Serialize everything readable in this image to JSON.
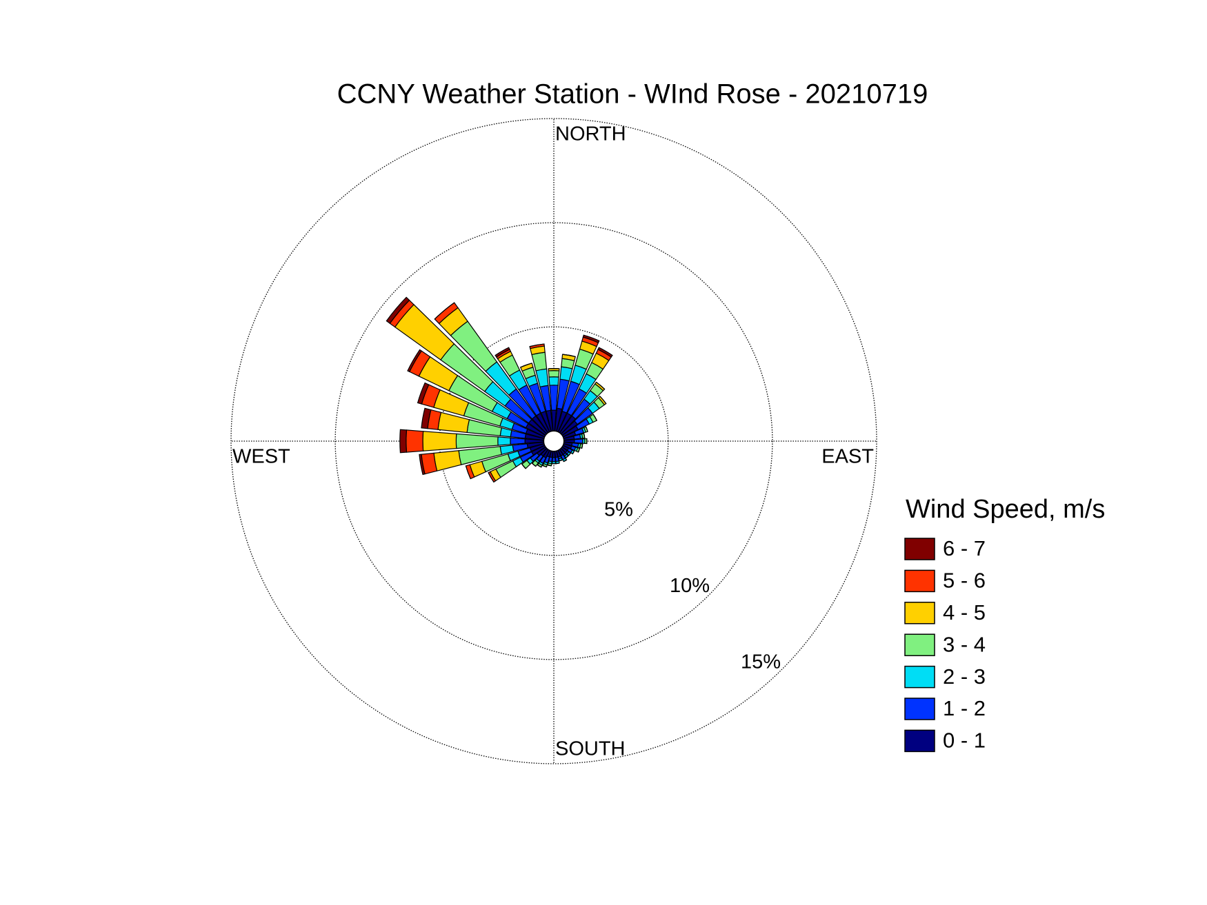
{
  "chart_data": {
    "type": "windrose",
    "title": "CCNY Weather Station - WInd Rose - 20210719",
    "x": [
      0,
      10,
      20,
      30,
      40,
      50,
      60,
      70,
      80,
      90,
      100,
      110,
      120,
      130,
      140,
      150,
      160,
      170,
      180,
      190,
      200,
      210,
      220,
      230,
      240,
      250,
      260,
      270,
      280,
      290,
      300,
      310,
      320,
      330,
      340,
      350
    ],
    "rlim": [
      0,
      15
    ],
    "rticks": [
      {
        "value": 5,
        "label": "5%"
      },
      {
        "value": 10,
        "label": "10%"
      },
      {
        "value": 15,
        "label": "15%"
      }
    ],
    "angle_ticks": [
      {
        "value": 0,
        "label": "NORTH"
      },
      {
        "value": 90,
        "label": "EAST"
      },
      {
        "value": 180,
        "label": "SOUTH"
      },
      {
        "value": 270,
        "label": "WEST"
      }
    ],
    "legend_title": "Wind Speed, m/s",
    "legend": "right",
    "series": [
      {
        "name": "0 - 1",
        "color": "#000080",
        "values": [
          1.0,
          1.1,
          1.0,
          1.0,
          1.0,
          0.9,
          0.8,
          0.6,
          0.5,
          0.5,
          0.4,
          0.4,
          0.3,
          0.3,
          0.3,
          0.3,
          0.3,
          0.3,
          0.3,
          0.3,
          0.3,
          0.4,
          0.4,
          0.5,
          0.7,
          0.7,
          0.8,
          0.9,
          0.9,
          0.9,
          1.0,
          1.0,
          1.0,
          1.0,
          1.0,
          1.0
        ]
      },
      {
        "name": "1 - 2",
        "color": "#0033ff",
        "values": [
          1.2,
          1.4,
          1.5,
          1.3,
          1.0,
          0.9,
          0.6,
          0.4,
          0.3,
          0.4,
          0.3,
          0.2,
          0.2,
          0.1,
          0.1,
          0.2,
          0.1,
          0.2,
          0.2,
          0.2,
          0.3,
          0.3,
          0.3,
          0.4,
          0.6,
          0.6,
          0.7,
          0.7,
          0.7,
          0.7,
          1.0,
          1.4,
          1.6,
          1.5,
          1.4,
          1.2
        ]
      },
      {
        "name": "2 - 3",
        "color": "#00ddf5",
        "values": [
          0.4,
          0.6,
          0.8,
          0.8,
          0.5,
          0.4,
          0.2,
          0.1,
          0.1,
          0.1,
          0.1,
          0.1,
          0.1,
          0.1,
          0.1,
          0.1,
          0.1,
          0.1,
          0.1,
          0.1,
          0.1,
          0.1,
          0.1,
          0.2,
          0.4,
          0.5,
          0.6,
          0.6,
          0.5,
          0.6,
          0.8,
          1.2,
          1.6,
          0.8,
          0.4,
          0.8
        ]
      },
      {
        "name": "3 - 4",
        "color": "#80f080",
        "values": [
          0.3,
          0.4,
          0.8,
          0.6,
          0.4,
          0.3,
          0.2,
          0.1,
          0.1,
          0.1,
          0.1,
          0.1,
          0,
          0,
          0,
          0,
          0,
          0,
          0,
          0.1,
          0.1,
          0.1,
          0.2,
          0.3,
          0.9,
          1.3,
          2.0,
          2.0,
          1.6,
          1.8,
          2.3,
          2.6,
          2.4,
          0.8,
          0.4,
          0.8
        ]
      },
      {
        "name": "4 - 5",
        "color": "#ffd000",
        "values": [
          0.1,
          0.2,
          0.4,
          0.5,
          0.1,
          0.1,
          0,
          0,
          0,
          0,
          0,
          0,
          0,
          0,
          0,
          0,
          0,
          0,
          0,
          0,
          0,
          0,
          0,
          0,
          0.3,
          0.6,
          1.2,
          1.6,
          1.4,
          1.5,
          1.6,
          2.7,
          0.8,
          0.2,
          0.2,
          0.3
        ]
      },
      {
        "name": "5 - 6",
        "color": "#ff3300",
        "values": [
          0,
          0,
          0.2,
          0.2,
          0,
          0,
          0,
          0,
          0,
          0,
          0,
          0,
          0,
          0,
          0,
          0,
          0,
          0,
          0,
          0,
          0,
          0,
          0,
          0,
          0.1,
          0.2,
          0.6,
          0.8,
          0.5,
          0.6,
          0.5,
          0.3,
          0.3,
          0.1,
          0,
          0.1
        ]
      },
      {
        "name": "6 - 7",
        "color": "#800000",
        "values": [
          0,
          0,
          0.1,
          0.1,
          0,
          0,
          0,
          0,
          0,
          0,
          0,
          0,
          0,
          0,
          0,
          0,
          0,
          0,
          0,
          0,
          0,
          0,
          0,
          0,
          0,
          0,
          0.1,
          0.3,
          0.3,
          0.2,
          0.1,
          0.2,
          0,
          0.1,
          0,
          0
        ]
      }
    ]
  }
}
